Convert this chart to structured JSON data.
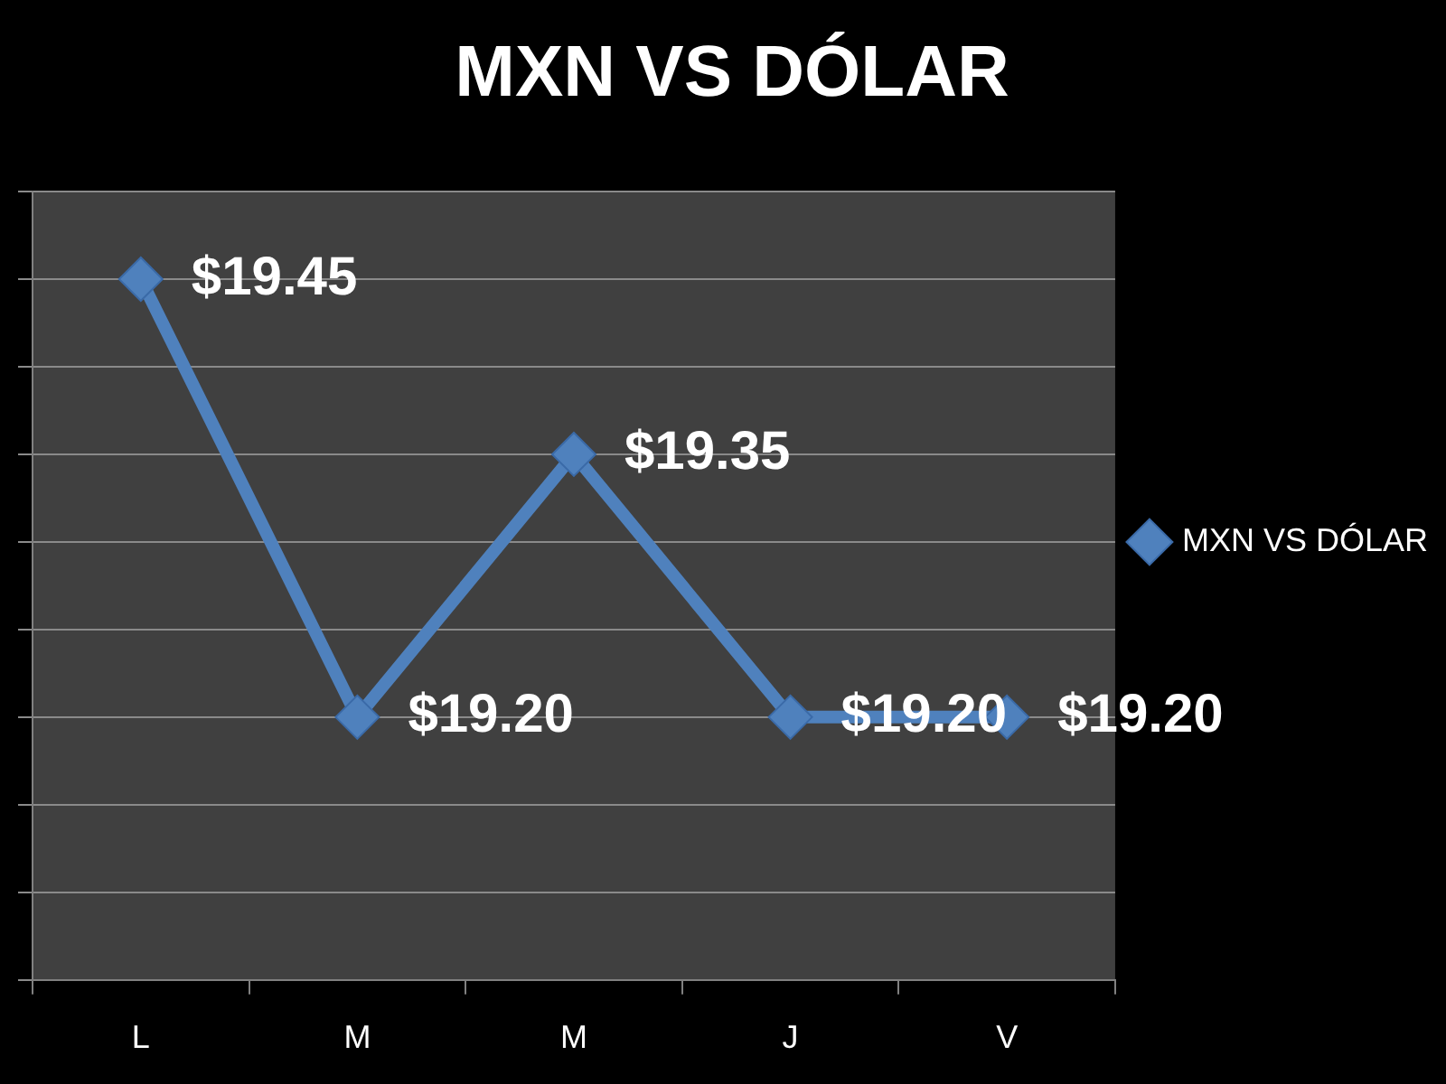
{
  "chart_data": {
    "type": "line",
    "title": "MXN VS DÓLAR",
    "categories": [
      "L",
      "M",
      "M",
      "J",
      "V"
    ],
    "series": [
      {
        "name": "MXN VS DÓLAR",
        "color": "#4f81bd",
        "values": [
          19.45,
          19.2,
          19.35,
          19.2,
          19.2
        ],
        "value_labels": [
          "$19.45",
          "$19.20",
          "$19.35",
          "$19.20",
          "$19.20"
        ]
      }
    ],
    "ylim": [
      19.05,
      19.5
    ],
    "yticks": [
      {
        "value": 19.05,
        "label": null
      },
      {
        "value": 19.1,
        "label": null
      },
      {
        "value": 19.15,
        "label": null
      },
      {
        "value": 19.2,
        "label": null
      },
      {
        "value": 19.25,
        "label": null
      },
      {
        "value": 19.3,
        "label": null
      },
      {
        "value": 19.35,
        "label": null
      },
      {
        "value": 19.4,
        "label": null
      },
      {
        "value": 19.45,
        "label": null
      },
      {
        "value": 19.5,
        "label": null
      }
    ],
    "grid": "y",
    "legend": "right",
    "tick_labels": "x",
    "marker": "diamond",
    "line_style": "solid"
  }
}
